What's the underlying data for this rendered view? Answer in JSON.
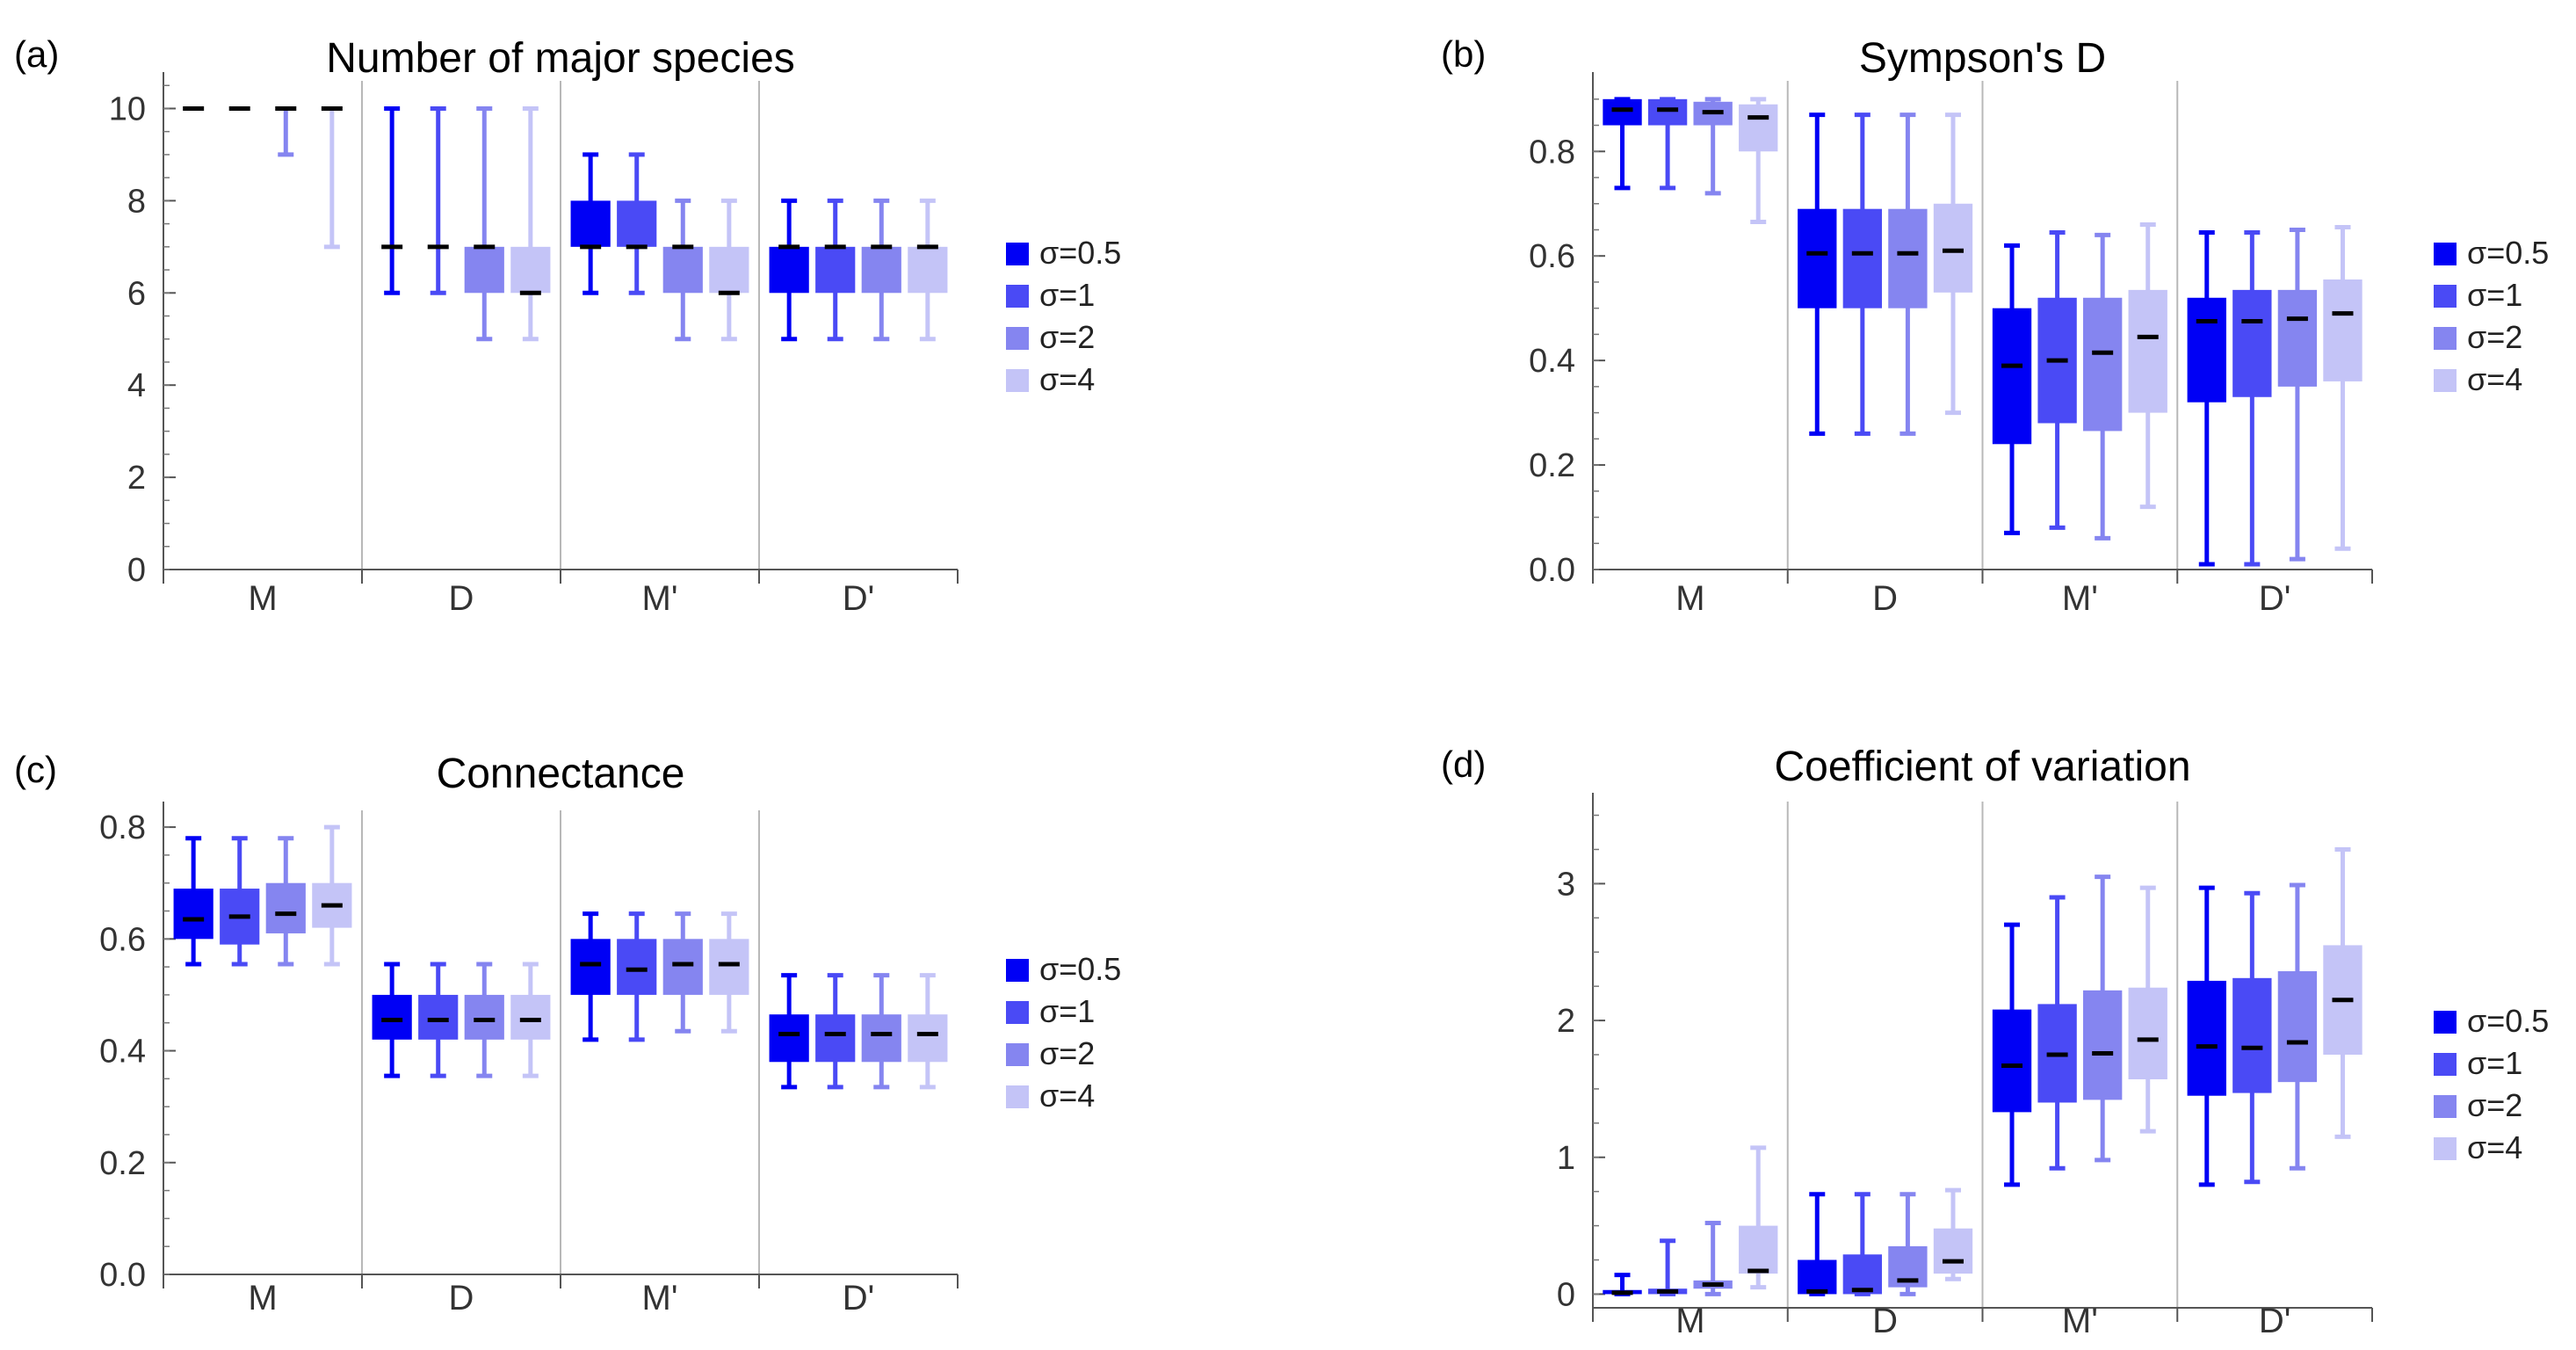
{
  "chart_data": [
    {
      "panel_label": "(a)",
      "type": "boxplot",
      "title": "Number of major species",
      "categories": [
        "M",
        "D",
        "M'",
        "D'"
      ],
      "ylim": [
        0,
        10.6
      ],
      "yticks": [
        "0",
        "2",
        "4",
        "6",
        "8",
        "10"
      ],
      "series": [
        {
          "name": "σ=0.5",
          "boxes": [
            {
              "min": 10,
              "q1": 10,
              "median": 10,
              "q3": 10,
              "max": 10
            },
            {
              "min": 6,
              "q1": 7,
              "median": 7,
              "q3": 7,
              "max": 10
            },
            {
              "min": 6,
              "q1": 7,
              "median": 7,
              "q3": 8,
              "max": 9
            },
            {
              "min": 5,
              "q1": 6,
              "median": 7,
              "q3": 7,
              "max": 8
            }
          ]
        },
        {
          "name": "σ=1",
          "boxes": [
            {
              "min": 10,
              "q1": 10,
              "median": 10,
              "q3": 10,
              "max": 10
            },
            {
              "min": 6,
              "q1": 7,
              "median": 7,
              "q3": 7,
              "max": 10
            },
            {
              "min": 6,
              "q1": 7,
              "median": 7,
              "q3": 8,
              "max": 9
            },
            {
              "min": 5,
              "q1": 6,
              "median": 7,
              "q3": 7,
              "max": 8
            }
          ]
        },
        {
          "name": "σ=2",
          "boxes": [
            {
              "min": 9,
              "q1": 10,
              "median": 10,
              "q3": 10,
              "max": 10
            },
            {
              "min": 5,
              "q1": 6,
              "median": 7,
              "q3": 7,
              "max": 10
            },
            {
              "min": 5,
              "q1": 6,
              "median": 7,
              "q3": 7,
              "max": 8
            },
            {
              "min": 5,
              "q1": 6,
              "median": 7,
              "q3": 7,
              "max": 8
            }
          ]
        },
        {
          "name": "σ=4",
          "boxes": [
            {
              "min": 7,
              "q1": 10,
              "median": 10,
              "q3": 10,
              "max": 10
            },
            {
              "min": 5,
              "q1": 6,
              "median": 6,
              "q3": 7,
              "max": 10
            },
            {
              "min": 5,
              "q1": 6,
              "median": 6,
              "q3": 7,
              "max": 8
            },
            {
              "min": 5,
              "q1": 6,
              "median": 7,
              "q3": 7,
              "max": 8
            }
          ]
        }
      ]
    },
    {
      "panel_label": "(b)",
      "type": "boxplot",
      "title": "Sympson's D",
      "categories": [
        "M",
        "D",
        "M'",
        "D'"
      ],
      "ylim": [
        0,
        0.935
      ],
      "yticks": [
        "0.0",
        "0.2",
        "0.4",
        "0.6",
        "0.8"
      ],
      "series": [
        {
          "name": "σ=0.5",
          "boxes": [
            {
              "min": 0.73,
              "q1": 0.85,
              "median": 0.88,
              "q3": 0.9,
              "max": 0.9
            },
            {
              "min": 0.26,
              "q1": 0.5,
              "median": 0.605,
              "q3": 0.69,
              "max": 0.87
            },
            {
              "min": 0.07,
              "q1": 0.24,
              "median": 0.39,
              "q3": 0.5,
              "max": 0.62
            },
            {
              "min": 0.01,
              "q1": 0.32,
              "median": 0.475,
              "q3": 0.52,
              "max": 0.645
            }
          ]
        },
        {
          "name": "σ=1",
          "boxes": [
            {
              "min": 0.73,
              "q1": 0.85,
              "median": 0.88,
              "q3": 0.9,
              "max": 0.9
            },
            {
              "min": 0.26,
              "q1": 0.5,
              "median": 0.605,
              "q3": 0.69,
              "max": 0.87
            },
            {
              "min": 0.08,
              "q1": 0.28,
              "median": 0.4,
              "q3": 0.52,
              "max": 0.645
            },
            {
              "min": 0.01,
              "q1": 0.33,
              "median": 0.475,
              "q3": 0.535,
              "max": 0.645
            }
          ]
        },
        {
          "name": "σ=2",
          "boxes": [
            {
              "min": 0.72,
              "q1": 0.85,
              "median": 0.875,
              "q3": 0.895,
              "max": 0.9
            },
            {
              "min": 0.26,
              "q1": 0.5,
              "median": 0.605,
              "q3": 0.69,
              "max": 0.87
            },
            {
              "min": 0.06,
              "q1": 0.265,
              "median": 0.415,
              "q3": 0.52,
              "max": 0.64
            },
            {
              "min": 0.02,
              "q1": 0.35,
              "median": 0.48,
              "q3": 0.535,
              "max": 0.65
            }
          ]
        },
        {
          "name": "σ=4",
          "boxes": [
            {
              "min": 0.665,
              "q1": 0.8,
              "median": 0.865,
              "q3": 0.89,
              "max": 0.9
            },
            {
              "min": 0.3,
              "q1": 0.53,
              "median": 0.61,
              "q3": 0.7,
              "max": 0.87
            },
            {
              "min": 0.12,
              "q1": 0.3,
              "median": 0.445,
              "q3": 0.535,
              "max": 0.66
            },
            {
              "min": 0.04,
              "q1": 0.36,
              "median": 0.49,
              "q3": 0.555,
              "max": 0.655
            }
          ]
        }
      ]
    },
    {
      "panel_label": "(c)",
      "type": "boxplot",
      "title": "Connectance",
      "categories": [
        "M",
        "D",
        "M'",
        "D'"
      ],
      "ylim": [
        0,
        0.83
      ],
      "yticks": [
        "0.0",
        "0.2",
        "0.4",
        "0.6",
        "0.8"
      ],
      "series": [
        {
          "name": "σ=0.5",
          "boxes": [
            {
              "min": 0.555,
              "q1": 0.6,
              "median": 0.635,
              "q3": 0.69,
              "max": 0.78
            },
            {
              "min": 0.355,
              "q1": 0.42,
              "median": 0.455,
              "q3": 0.5,
              "max": 0.555
            },
            {
              "min": 0.42,
              "q1": 0.5,
              "median": 0.555,
              "q3": 0.6,
              "max": 0.645
            },
            {
              "min": 0.335,
              "q1": 0.38,
              "median": 0.43,
              "q3": 0.465,
              "max": 0.535
            }
          ]
        },
        {
          "name": "σ=1",
          "boxes": [
            {
              "min": 0.555,
              "q1": 0.59,
              "median": 0.64,
              "q3": 0.69,
              "max": 0.78
            },
            {
              "min": 0.355,
              "q1": 0.42,
              "median": 0.455,
              "q3": 0.5,
              "max": 0.555
            },
            {
              "min": 0.42,
              "q1": 0.5,
              "median": 0.545,
              "q3": 0.6,
              "max": 0.645
            },
            {
              "min": 0.335,
              "q1": 0.38,
              "median": 0.43,
              "q3": 0.465,
              "max": 0.535
            }
          ]
        },
        {
          "name": "σ=2",
          "boxes": [
            {
              "min": 0.555,
              "q1": 0.61,
              "median": 0.645,
              "q3": 0.7,
              "max": 0.78
            },
            {
              "min": 0.355,
              "q1": 0.42,
              "median": 0.455,
              "q3": 0.5,
              "max": 0.555
            },
            {
              "min": 0.435,
              "q1": 0.5,
              "median": 0.555,
              "q3": 0.6,
              "max": 0.645
            },
            {
              "min": 0.335,
              "q1": 0.38,
              "median": 0.43,
              "q3": 0.465,
              "max": 0.535
            }
          ]
        },
        {
          "name": "σ=4",
          "boxes": [
            {
              "min": 0.555,
              "q1": 0.62,
              "median": 0.66,
              "q3": 0.7,
              "max": 0.8
            },
            {
              "min": 0.355,
              "q1": 0.42,
              "median": 0.455,
              "q3": 0.5,
              "max": 0.555
            },
            {
              "min": 0.435,
              "q1": 0.5,
              "median": 0.555,
              "q3": 0.6,
              "max": 0.645
            },
            {
              "min": 0.335,
              "q1": 0.38,
              "median": 0.43,
              "q3": 0.465,
              "max": 0.535
            }
          ]
        }
      ]
    },
    {
      "panel_label": "(d)",
      "type": "boxplot",
      "title": "Coefficient of variation",
      "categories": [
        "M",
        "D",
        "M'",
        "D'"
      ],
      "ylim": [
        -0.1,
        3.6
      ],
      "yticks": [
        "0",
        "1",
        "2",
        "3"
      ],
      "series": [
        {
          "name": "σ=0.5",
          "boxes": [
            {
              "min": 0.0,
              "q1": 0.0,
              "median": 0.01,
              "q3": 0.03,
              "max": 0.14
            },
            {
              "min": 0.0,
              "q1": 0.0,
              "median": 0.02,
              "q3": 0.25,
              "max": 0.73
            },
            {
              "min": 0.8,
              "q1": 1.33,
              "median": 1.67,
              "q3": 2.08,
              "max": 2.7
            },
            {
              "min": 0.8,
              "q1": 1.45,
              "median": 1.81,
              "q3": 2.29,
              "max": 2.97
            }
          ]
        },
        {
          "name": "σ=1",
          "boxes": [
            {
              "min": 0.0,
              "q1": 0.0,
              "median": 0.02,
              "q3": 0.04,
              "max": 0.39
            },
            {
              "min": 0.0,
              "q1": 0.0,
              "median": 0.03,
              "q3": 0.29,
              "max": 0.73
            },
            {
              "min": 0.92,
              "q1": 1.4,
              "median": 1.75,
              "q3": 2.12,
              "max": 2.9
            },
            {
              "min": 0.82,
              "q1": 1.47,
              "median": 1.8,
              "q3": 2.31,
              "max": 2.93
            }
          ]
        },
        {
          "name": "σ=2",
          "boxes": [
            {
              "min": 0.0,
              "q1": 0.04,
              "median": 0.07,
              "q3": 0.1,
              "max": 0.52
            },
            {
              "min": 0.0,
              "q1": 0.05,
              "median": 0.1,
              "q3": 0.35,
              "max": 0.73
            },
            {
              "min": 0.98,
              "q1": 1.42,
              "median": 1.76,
              "q3": 2.22,
              "max": 3.05
            },
            {
              "min": 0.92,
              "q1": 1.55,
              "median": 1.84,
              "q3": 2.36,
              "max": 2.99
            }
          ]
        },
        {
          "name": "σ=4",
          "boxes": [
            {
              "min": 0.05,
              "q1": 0.15,
              "median": 0.17,
              "q3": 0.5,
              "max": 1.07
            },
            {
              "min": 0.11,
              "q1": 0.15,
              "median": 0.24,
              "q3": 0.48,
              "max": 0.76
            },
            {
              "min": 1.19,
              "q1": 1.57,
              "median": 1.86,
              "q3": 2.24,
              "max": 2.97
            },
            {
              "min": 1.15,
              "q1": 1.75,
              "median": 2.15,
              "q3": 2.55,
              "max": 3.25
            }
          ]
        }
      ]
    }
  ],
  "legend": {
    "entries": [
      "σ=0.5",
      "σ=1",
      "σ=2",
      "σ=4"
    ],
    "colors": [
      "#0000f5",
      "#4a4af5",
      "#8585f0",
      "#c4c4f7"
    ]
  }
}
